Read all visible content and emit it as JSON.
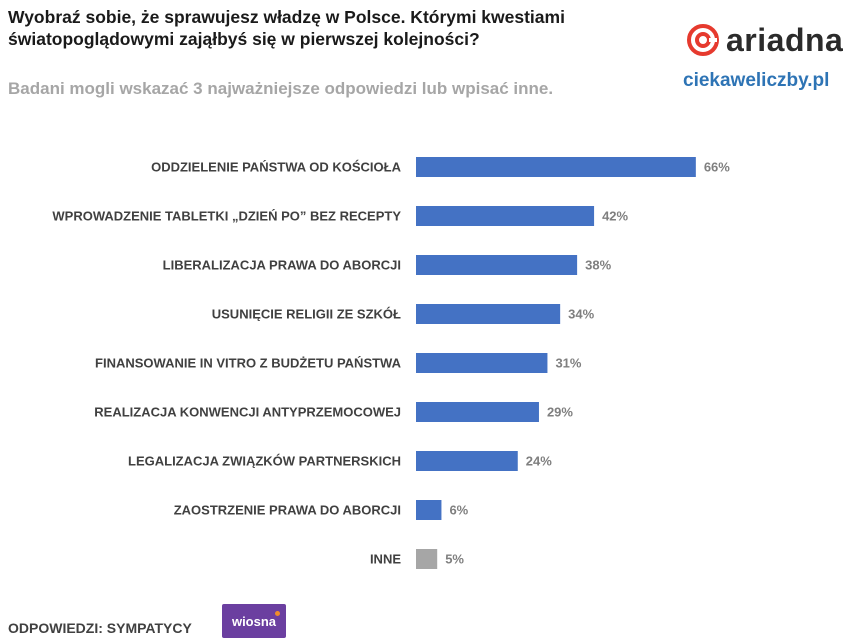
{
  "header": {
    "title": "Wyobraź sobie, że sprawujesz władzę w Polsce. Którymi kwestiami światopoglądowymi zająłbyś się w pierwszej kolejności?",
    "subtitle": "Badani mogli wskazać 3 najważniejsze odpowiedzi lub wpisać inne."
  },
  "brand": {
    "logo_text": "ariadna",
    "logo_icon": "ariadna-logo-icon",
    "logo_color": "#e63a2e",
    "site": "ciekaweliczby.pl"
  },
  "footer": {
    "label": "ODPOWIEDZI: SYMPATYCY",
    "badge_text": "wiosna",
    "badge_color": "#6b3fa0"
  },
  "chart_data": {
    "type": "bar",
    "orientation": "horizontal",
    "categories": [
      "ODDZIELENIE PAŃSTWA OD KOŚCIOŁA",
      "WPROWADZENIE TABLETKI „DZIEŃ PO” BEZ RECEPTY",
      "LIBERALIZACJA PRAWA DO ABORCJI",
      "USUNIĘCIE RELIGII ZE SZKÓŁ",
      "FINANSOWANIE IN VITRO Z BUDŻETU PAŃSTWA",
      "REALIZACJA KONWENCJI ANTYPRZEMOCOWEJ",
      "LEGALIZACJA ZWIĄZKÓW PARTNERSKICH",
      "ZAOSTRZENIE PRAWA DO ABORCJI",
      "INNE"
    ],
    "values": [
      66,
      42,
      38,
      34,
      31,
      29,
      24,
      6,
      5
    ],
    "labels": [
      "66%",
      "42%",
      "38%",
      "34%",
      "31%",
      "29%",
      "24%",
      "6%",
      "5%"
    ],
    "colors": [
      "#4472c4",
      "#4472c4",
      "#4472c4",
      "#4472c4",
      "#4472c4",
      "#4472c4",
      "#4472c4",
      "#4472c4",
      "#a6a6a6"
    ],
    "unit": "%",
    "xlim": [
      0,
      100
    ],
    "grid": false,
    "legend": "none"
  }
}
